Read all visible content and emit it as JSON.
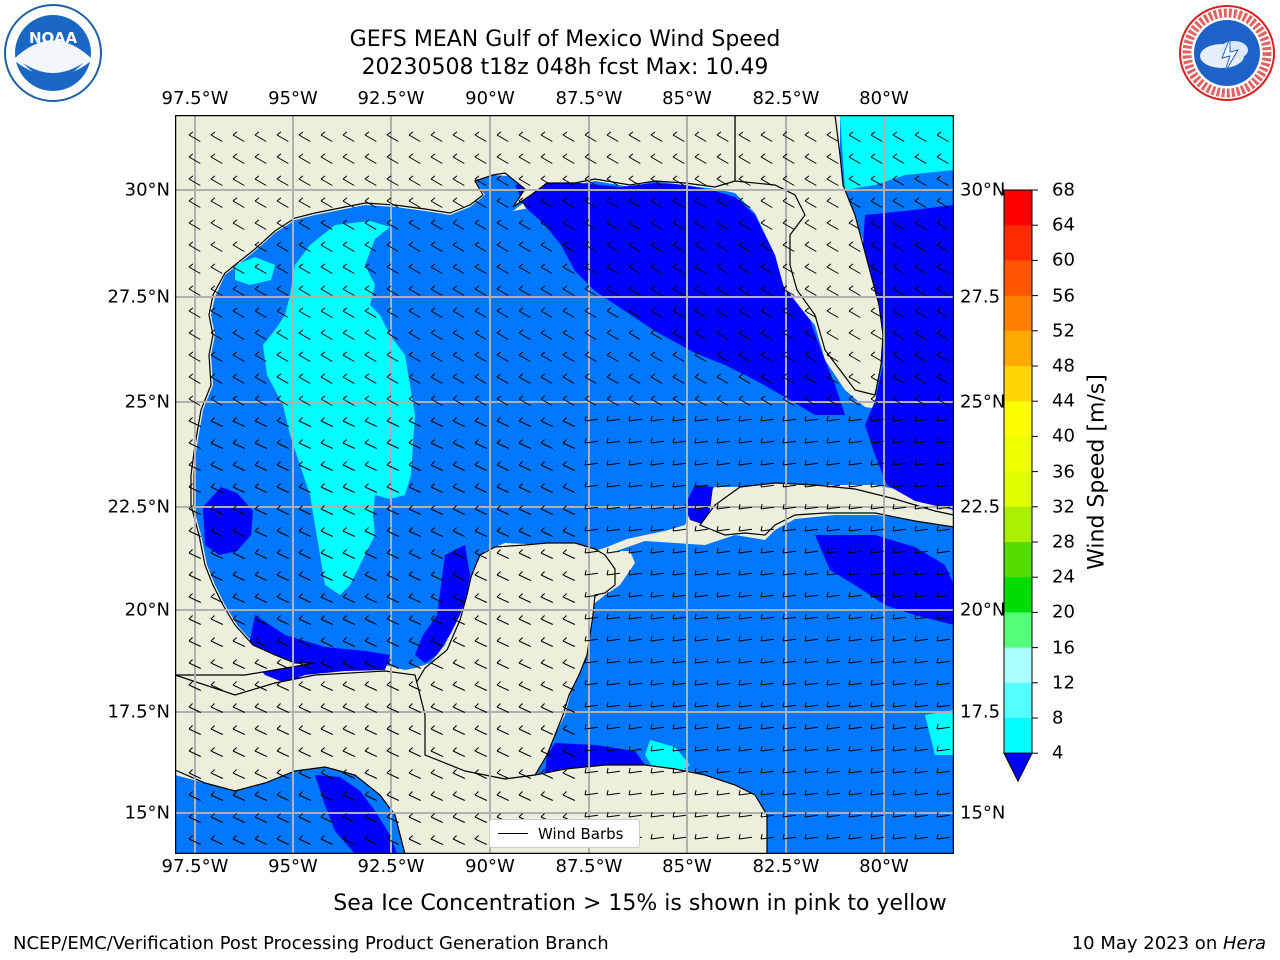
{
  "title": {
    "line1": "GEFS MEAN Gulf of Mexico Wind Speed",
    "line2": "20230508 t18z 048h fcst   Max: 10.49"
  },
  "axes": {
    "lon_ticks": [
      "97.5°W",
      "95°W",
      "92.5°W",
      "90°W",
      "87.5°W",
      "85°W",
      "82.5°W",
      "80°W"
    ],
    "lat_ticks": [
      "30°N",
      "27.5°N",
      "25°N",
      "22.5°N",
      "20°N",
      "17.5°N",
      "15°N"
    ],
    "lat_ticks_right": [
      "30°N",
      "27.5",
      "25°N",
      "22.5",
      "20°N",
      "17.5",
      "15°N"
    ]
  },
  "legend": {
    "wind_barbs_label": "Wind Barbs"
  },
  "colorbar": {
    "label": "Wind Speed [m/s]",
    "ticks": [
      "68",
      "64",
      "60",
      "56",
      "52",
      "48",
      "44",
      "40",
      "36",
      "32",
      "28",
      "24",
      "20",
      "16",
      "12",
      "8",
      "4"
    ],
    "colors": [
      "#ff0000",
      "#ff2a00",
      "#ff5500",
      "#ff8000",
      "#ffaa00",
      "#ffd500",
      "#ffff00",
      "#eeff00",
      "#ddff00",
      "#aaee00",
      "#55dd00",
      "#00dd00",
      "#55ff77",
      "#aaffff",
      "#55ffff",
      "#00ffff",
      "#0077ff"
    ],
    "extend_color": "#0000ff"
  },
  "caption": "Sea Ice Concentration > 15% is shown in pink to yellow",
  "footer": {
    "left": "NCEP/EMC/Verification Post Processing Product Generation Branch",
    "right_prefix": "10 May 2023 on ",
    "right_italic": "Hera"
  },
  "logos": {
    "left": {
      "text": "NOAA",
      "ring_text": "NATIONAL OCEANIC AND ATMOSPHERIC ADMINISTRATION · U.S. DEPARTMENT OF COMMERCE"
    },
    "right": {
      "ring_text": "NATIONAL WEATHER SERVICE"
    }
  },
  "map_colors": {
    "land": "#eeeedd",
    "ocean_low": "#0077ff",
    "ocean_very_low": "#0000ff",
    "ocean_mid": "#00ffff",
    "grid": "#b0b0b0",
    "coast": "#000000"
  }
}
